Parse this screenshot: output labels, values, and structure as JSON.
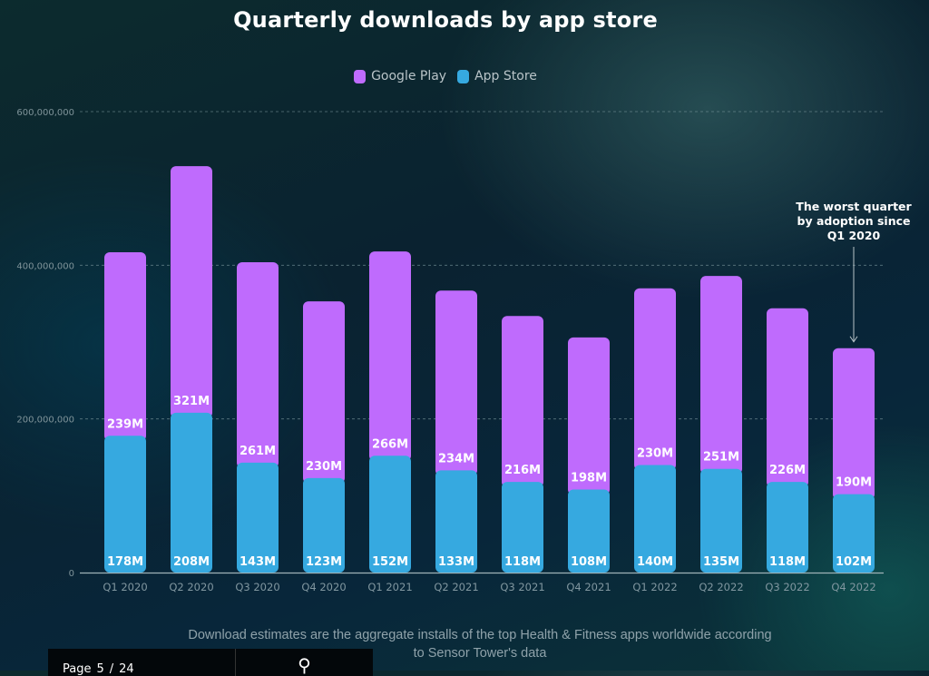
{
  "chart_data": {
    "type": "bar",
    "stacked": true,
    "title": "Quarterly downloads by app store",
    "xlabel": "",
    "ylabel": "",
    "ylim": [
      0,
      600000000
    ],
    "yticks": [
      0,
      200000000,
      400000000,
      600000000
    ],
    "ytick_labels": [
      "0",
      "200,000,000",
      "400,000,000",
      "600,000,000"
    ],
    "grid": true,
    "legend_position": "top-center",
    "categories": [
      "Q1 2020",
      "Q2 2020",
      "Q3 2020",
      "Q4 2020",
      "Q1 2021",
      "Q2 2021",
      "Q3 2021",
      "Q4 2021",
      "Q1 2022",
      "Q2 2022",
      "Q3 2022",
      "Q4 2022"
    ],
    "series": [
      {
        "name": "App Store",
        "color": "#36a9e0",
        "values": [
          178000000,
          208000000,
          143000000,
          123000000,
          152000000,
          133000000,
          118000000,
          108000000,
          140000000,
          135000000,
          118000000,
          102000000
        ],
        "labels": [
          "178M",
          "208M",
          "143M",
          "123M",
          "152M",
          "133M",
          "118M",
          "108M",
          "140M",
          "135M",
          "118M",
          "102M"
        ]
      },
      {
        "name": "Google Play",
        "color": "#bf6bfd",
        "values": [
          239000000,
          321000000,
          261000000,
          230000000,
          266000000,
          234000000,
          216000000,
          198000000,
          230000000,
          251000000,
          226000000,
          190000000
        ],
        "labels": [
          "239M",
          "321M",
          "261M",
          "230M",
          "266M",
          "234M",
          "216M",
          "198M",
          "230M",
          "251M",
          "226M",
          "190M"
        ]
      }
    ],
    "legend": [
      "Google Play",
      "App Store"
    ],
    "annotation": {
      "text_lines": [
        "The worst quarter",
        "by adoption since",
        "Q1 2020"
      ],
      "target_category": "Q4 2022"
    }
  },
  "footnote": {
    "line1": "Download estimates are the aggregate installs of the top Health & Fitness apps worldwide according",
    "line2": "to Sensor Tower's data"
  },
  "toolbar": {
    "page_label": "Page",
    "page_current": "5",
    "page_sep": "/",
    "page_total": "24",
    "zoom_icon": "magnifier-icon"
  }
}
